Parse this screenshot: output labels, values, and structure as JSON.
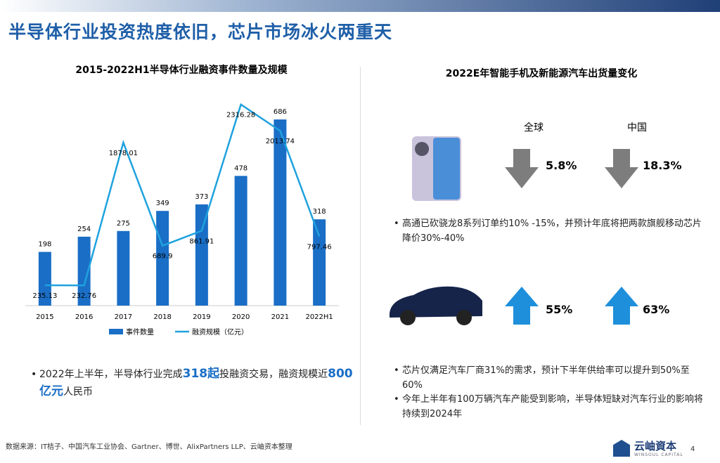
{
  "header": {
    "title": "半导体行业投资热度依旧，芯片市场冰火两重天"
  },
  "chart_data": {
    "type": "bar-line",
    "title": "2015-2022H1半导体行业融资事件数量及规模",
    "categories": [
      "2015",
      "2016",
      "2017",
      "2018",
      "2019",
      "2020",
      "2021",
      "2022H1"
    ],
    "series": [
      {
        "name": "事件数量",
        "type": "bar",
        "color": "#1a6ec6",
        "values": [
          198,
          254,
          275,
          349,
          373,
          478,
          686,
          318
        ]
      },
      {
        "name": "融资规模（亿元）",
        "type": "line",
        "axis": "y2",
        "color": "#1fa2de",
        "values": [
          235.13,
          232.76,
          1878.01,
          689.9,
          861.91,
          2316.28,
          2013.74,
          797.46
        ]
      }
    ],
    "ylim": [
      0,
      800
    ],
    "y2lim": [
      0,
      2500
    ],
    "legend": "bottom"
  },
  "left_bullet": {
    "parts": [
      "2022年上半年，半导体行业完成",
      "318起",
      "投融资交易，融资规模近",
      "800亿元",
      "人民币"
    ]
  },
  "right_panel": {
    "title": "2022E年智能手机及新能源汽车出货量变化",
    "columns": [
      "全球",
      "中国"
    ],
    "phone": {
      "values": [
        "5.8%",
        "18.3%"
      ],
      "bullet": "高通已砍骁龙8系列订单约10% -15%，并预计年底将把两款旗舰移动芯片降价30%-40%"
    },
    "car": {
      "values": [
        "55%",
        "63%"
      ],
      "bullets": [
        "芯片仅满足汽车厂商31%的需求，预计下半年供给率可以提升到50%至60%",
        "今年上半年有100万辆汽车产能受到影响，半导体短缺对汽车行业的影响将持续到2024年"
      ]
    }
  },
  "footer": {
    "source": "数据来源：IT桔子、中国汽车工业协会、Gartner、博世、AlixPartners LLP、云岫资本整理",
    "logo": "云岫資本",
    "logo_sub": "WINSOUL CAPITAL",
    "page": "4"
  }
}
